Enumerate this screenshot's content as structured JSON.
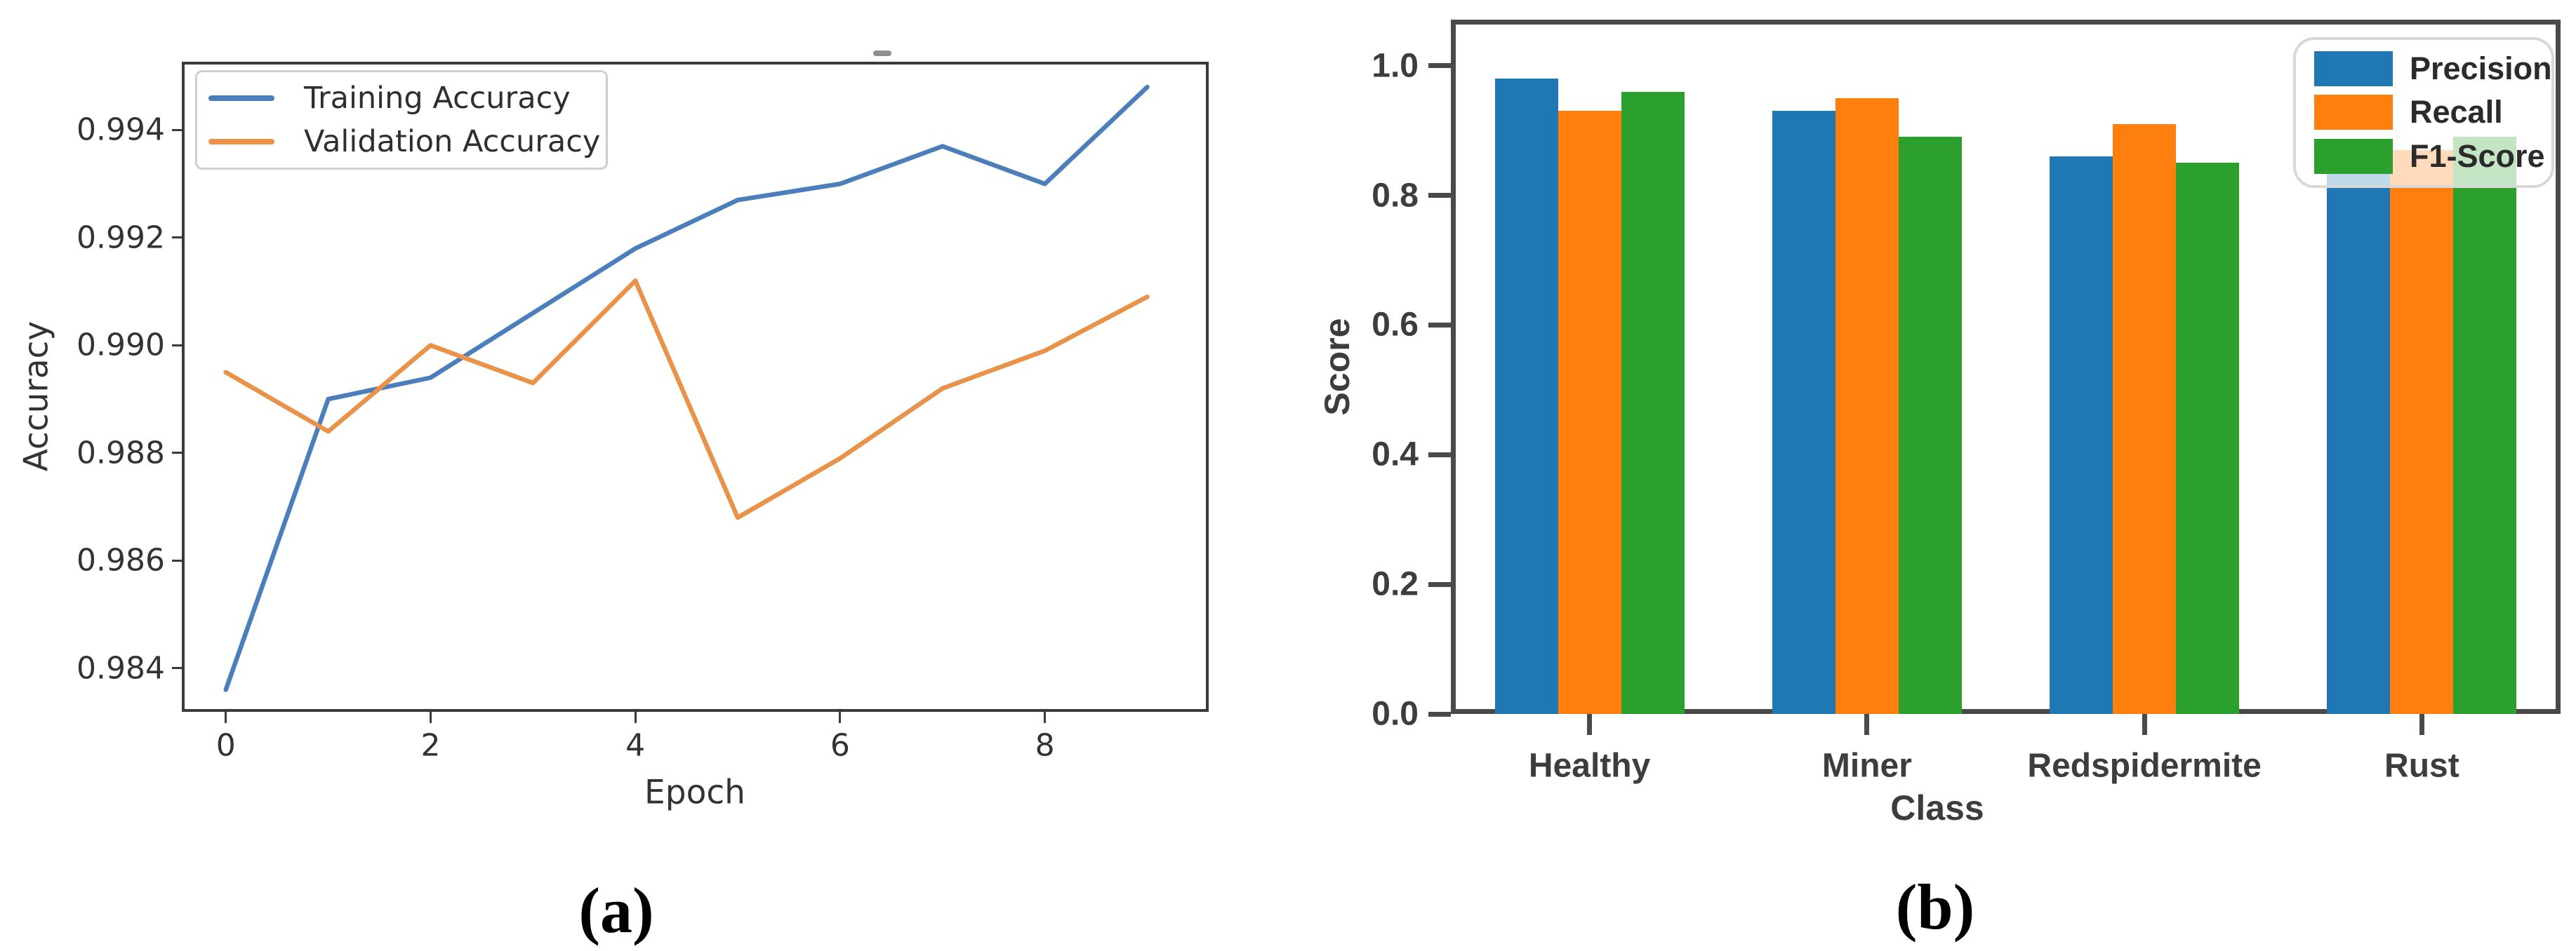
{
  "figure": {
    "background": "#ffffff",
    "panel_a_caption": "(a)",
    "panel_b_caption": "(b)"
  },
  "chart_data": [
    {
      "type": "line",
      "panel": "a",
      "caption": "(a)",
      "xlabel": "Epoch",
      "ylabel": "Accuracy",
      "x": [
        0,
        1,
        2,
        3,
        4,
        5,
        6,
        7,
        8,
        9
      ],
      "xlim": [
        -0.43,
        9.6
      ],
      "ylim": [
        0.98319,
        0.99527
      ],
      "xticks": [
        0,
        2,
        4,
        6,
        8
      ],
      "xtick_labels": [
        "0",
        "2",
        "4",
        "6",
        "8"
      ],
      "yticks": [
        0.984,
        0.986,
        0.988,
        0.99,
        0.992,
        0.994
      ],
      "ytick_labels": [
        "0.984",
        "0.986",
        "0.988",
        "0.990",
        "0.992",
        "0.994"
      ],
      "grid": false,
      "legend_position": "upper left",
      "series": [
        {
          "name": "Training Accuracy",
          "color": "#4C7EBB",
          "values": [
            0.9836,
            0.989,
            0.9894,
            0.9906,
            0.9918,
            0.9927,
            0.993,
            0.9937,
            0.993,
            0.9948
          ]
        },
        {
          "name": "Validation Accuracy",
          "color": "#E8924A",
          "values": [
            0.9895,
            0.9884,
            0.99,
            0.9893,
            0.9912,
            0.9868,
            0.9879,
            0.9892,
            0.9899,
            0.9909
          ]
        }
      ]
    },
    {
      "type": "bar",
      "panel": "b",
      "caption": "(b)",
      "xlabel": "Class",
      "ylabel": "Score",
      "categories": [
        "Healthy",
        "Miner",
        "Redspidermite",
        "Rust"
      ],
      "ylim": [
        0,
        1.071
      ],
      "yticks": [
        0.0,
        0.2,
        0.4,
        0.6,
        0.8,
        1.0
      ],
      "ytick_labels": [
        "0.0",
        "0.2",
        "0.4",
        "0.6",
        "0.8",
        "1.0"
      ],
      "grid": false,
      "legend_position": "upper right",
      "series": [
        {
          "name": "Precision",
          "color": "#1F77B4",
          "values": [
            0.98,
            0.93,
            0.86,
            0.85
          ]
        },
        {
          "name": "Recall",
          "color": "#FF7F0E",
          "values": [
            0.93,
            0.95,
            0.91,
            0.87
          ]
        },
        {
          "name": "F1-Score",
          "color": "#2CA02C",
          "values": [
            0.96,
            0.89,
            0.85,
            0.89
          ]
        }
      ]
    }
  ]
}
